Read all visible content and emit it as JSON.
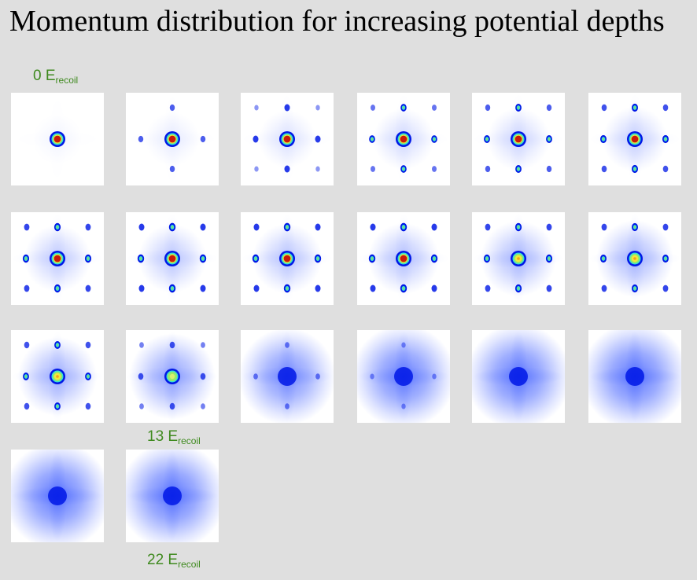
{
  "title": "Momentum distribution for increasing potential depths",
  "depth_labels": [
    {
      "value": "0 E",
      "subscript": "recoil",
      "frame": 1
    },
    {
      "value": "13 E",
      "subscript": "recoil",
      "frame": 14
    },
    {
      "value": "22 E",
      "subscript": "recoil",
      "frame": 20
    }
  ],
  "frames": [
    {
      "frame": 1,
      "center": "hot",
      "first_order": 0.0,
      "second_order": 0.0,
      "diffuse": 0.05
    },
    {
      "frame": 2,
      "center": "hot",
      "first_order": 0.3,
      "second_order": 0.0,
      "diffuse": 0.1
    },
    {
      "frame": 3,
      "center": "hot",
      "first_order": 0.45,
      "second_order": 0.05,
      "diffuse": 0.15
    },
    {
      "frame": 4,
      "center": "hot",
      "first_order": 0.6,
      "second_order": 0.2,
      "diffuse": 0.2
    },
    {
      "frame": 5,
      "center": "hot",
      "first_order": 0.65,
      "second_order": 0.3,
      "diffuse": 0.22
    },
    {
      "frame": 6,
      "center": "hot",
      "first_order": 0.7,
      "second_order": 0.35,
      "diffuse": 0.25
    },
    {
      "frame": 7,
      "center": "hot",
      "first_order": 0.75,
      "second_order": 0.4,
      "diffuse": 0.28
    },
    {
      "frame": 8,
      "center": "hot",
      "first_order": 0.8,
      "second_order": 0.45,
      "diffuse": 0.3
    },
    {
      "frame": 9,
      "center": "hot",
      "first_order": 0.8,
      "second_order": 0.45,
      "diffuse": 0.32
    },
    {
      "frame": 10,
      "center": "hot",
      "first_order": 0.8,
      "second_order": 0.45,
      "diffuse": 0.34
    },
    {
      "frame": 11,
      "center": "yellow",
      "first_order": 0.75,
      "second_order": 0.4,
      "diffuse": 0.4
    },
    {
      "frame": 12,
      "center": "yellow",
      "first_order": 0.7,
      "second_order": 0.4,
      "diffuse": 0.42
    },
    {
      "frame": 13,
      "center": "yellow",
      "first_order": 0.65,
      "second_order": 0.35,
      "diffuse": 0.45
    },
    {
      "frame": 14,
      "center": "cyan",
      "first_order": 0.35,
      "second_order": 0.15,
      "diffuse": 0.55
    },
    {
      "frame": 15,
      "center": "blue",
      "first_order": 0.15,
      "second_order": 0.0,
      "diffuse": 0.7
    },
    {
      "frame": 16,
      "center": "blue",
      "first_order": 0.05,
      "second_order": 0.0,
      "diffuse": 0.8
    },
    {
      "frame": 17,
      "center": "blue",
      "first_order": 0.0,
      "second_order": 0.0,
      "diffuse": 0.82
    },
    {
      "frame": 18,
      "center": "blue",
      "first_order": 0.0,
      "second_order": 0.0,
      "diffuse": 0.85
    },
    {
      "frame": 19,
      "center": "blue",
      "first_order": 0.0,
      "second_order": 0.0,
      "diffuse": 0.85
    },
    {
      "frame": 20,
      "center": "blue",
      "first_order": 0.0,
      "second_order": 0.0,
      "diffuse": 0.85
    }
  ],
  "colors": {
    "background": "#dfdfdf",
    "tile": "#ffffff",
    "label": "#3f8a1f",
    "peak_hot": "#c81a0a",
    "peak_yellow": "#f2e83a",
    "peak_cyan": "#39e0d0",
    "peak_blue": "#0018e6",
    "halo": "#2a4cff"
  }
}
